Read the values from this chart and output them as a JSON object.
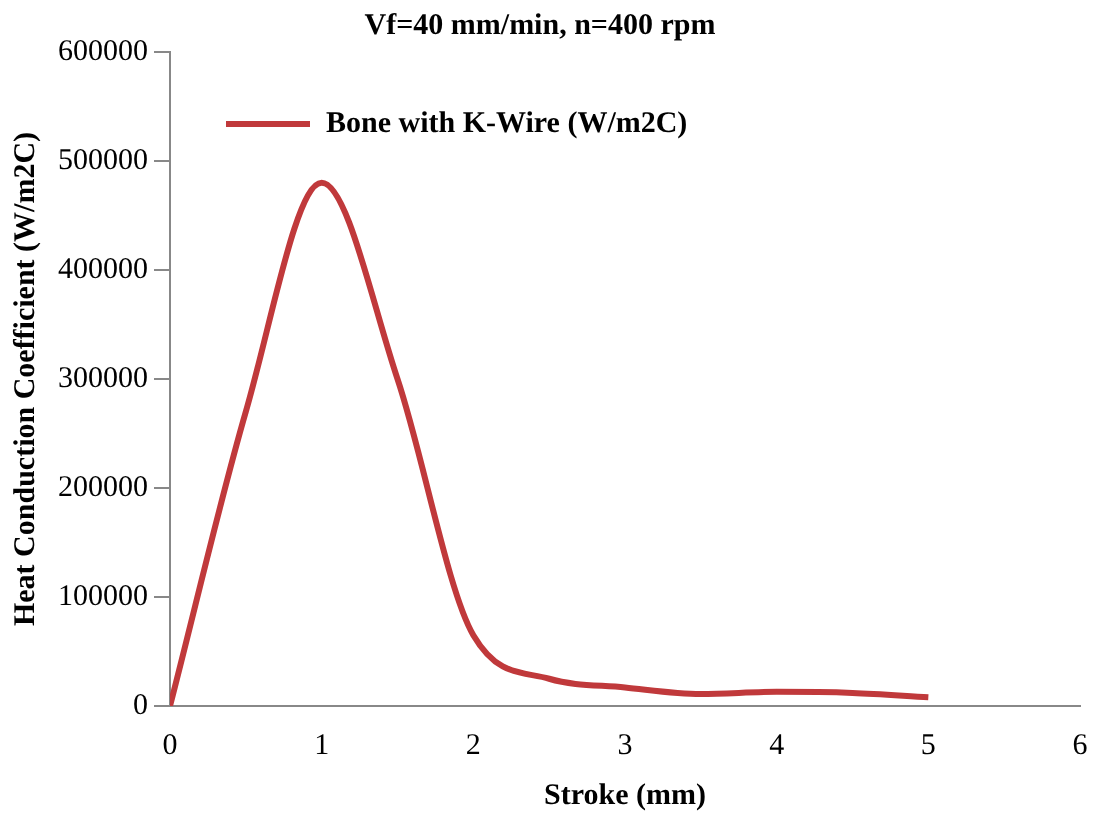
{
  "chart_data": {
    "type": "line",
    "title": "Vf=40 mm/min, n=400 rpm",
    "xlabel": "Stroke (mm)",
    "ylabel": "Heat Conduction Coefficient (W/m2C)",
    "x": [
      0,
      0.5,
      1,
      1.5,
      2,
      2.5,
      3,
      3.5,
      4,
      4.5,
      5
    ],
    "series": [
      {
        "name": "Bone with K-Wire (W/m2C)",
        "color": "#c0393b",
        "values": [
          0,
          270000,
          480000,
          300000,
          65000,
          25000,
          17000,
          11000,
          13000,
          12000,
          8000
        ]
      }
    ],
    "xlim": [
      0,
      6
    ],
    "xticks": [
      0,
      1,
      2,
      3,
      4,
      5,
      6
    ],
    "ylim": [
      0,
      600000
    ],
    "yticks": [
      0,
      100000,
      200000,
      300000,
      400000,
      500000,
      600000
    ],
    "grid": false,
    "legend": "top left",
    "marker": "none",
    "line_style": "solid"
  }
}
